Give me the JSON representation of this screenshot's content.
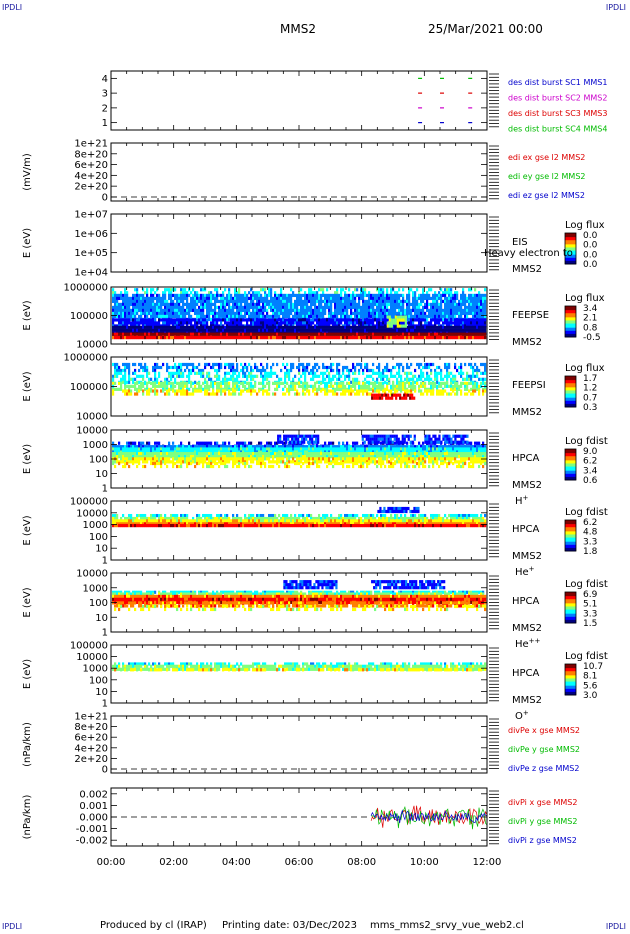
{
  "corner_label": "IPDLI",
  "header": {
    "spacecraft": "MMS2",
    "date": "25/Mar/2021 00:00"
  },
  "footer": {
    "produced_by": "Produced by cl (IRAP)",
    "printing_date": "Printing date: 03/Dec/2023",
    "filename": "mms_mms2_srvy_vue_web2.cl"
  },
  "chart_data": [
    {
      "type": "line",
      "id": "burst",
      "yticks": [
        "1",
        "2",
        "3",
        "4"
      ],
      "ylim": [
        0.5,
        4.5
      ],
      "legend": [
        {
          "label": "des dist burst SC1 MMS1",
          "color": "#0000cc"
        },
        {
          "label": "des dist burst SC2 MMS2",
          "color": "#cc00cc"
        },
        {
          "label": "des dist burst SC3 MMS3",
          "color": "#dd0000"
        },
        {
          "label": "des dist burst SC4 MMS4",
          "color": "#00bb00"
        }
      ],
      "series": [
        {
          "y": 4,
          "color": "#00bb00",
          "segments": [
            [
              9.8,
              10.0
            ],
            [
              10.5,
              10.7
            ],
            [
              11.4,
              11.6
            ]
          ]
        },
        {
          "y": 3,
          "color": "#dd0000",
          "segments": [
            [
              9.8,
              10.0
            ],
            [
              10.5,
              10.7
            ],
            [
              11.4,
              11.6
            ]
          ]
        },
        {
          "y": 2,
          "color": "#cc00cc",
          "segments": [
            [
              9.8,
              10.0
            ],
            [
              10.5,
              10.7
            ],
            [
              11.4,
              11.6
            ]
          ]
        },
        {
          "y": 1,
          "color": "#0000cc",
          "segments": [
            [
              9.8,
              10.0
            ],
            [
              10.5,
              10.7
            ],
            [
              11.4,
              11.6
            ]
          ]
        }
      ]
    },
    {
      "type": "line",
      "id": "edi",
      "ylabel": "(mV/m)",
      "yticks": [
        "0",
        "2e+20",
        "4e+20",
        "6e+20",
        "8e+20",
        "1e+21"
      ],
      "ylim": [
        0,
        1e+21
      ],
      "legend": [
        {
          "label": "edi ex gse l2 MMS2",
          "color": "#dd0000"
        },
        {
          "label": "edi ey gse l2 MMS2",
          "color": "#00bb00"
        },
        {
          "label": "edi ez gse l2 MMS2",
          "color": "#0000cc"
        }
      ]
    },
    {
      "type": "heatmap",
      "id": "eis",
      "ylabel": "E (eV)",
      "yticks": [
        "1e+04",
        "1e+05",
        "1e+06",
        "1e+07"
      ],
      "ylim": [
        10000.0,
        10000000.0
      ],
      "yscale": "log",
      "labels": [
        "EIS",
        "MMS2"
      ],
      "overlay": "Heavy electron to",
      "colorbar": {
        "title": "Log flux",
        "ticks": [
          "0.0",
          "0.0",
          "0.0",
          "0.0"
        ]
      }
    },
    {
      "type": "heatmap",
      "id": "feepse",
      "ylabel": "E (eV)",
      "yticks": [
        "10000",
        "100000",
        "1000000"
      ],
      "ylim": [
        10000.0,
        1000000.0
      ],
      "yscale": "log",
      "labels": [
        "FEEPSE",
        "MMS2"
      ],
      "colorbar": {
        "title": "Log flux",
        "ticks": [
          "3.4",
          "2.1",
          "0.8",
          "-0.5"
        ]
      }
    },
    {
      "type": "heatmap",
      "id": "feepsi",
      "ylabel": "E (eV)",
      "yticks": [
        "10000",
        "100000",
        "1000000"
      ],
      "ylim": [
        10000.0,
        1000000.0
      ],
      "yscale": "log",
      "labels": [
        "FEEPSI",
        "MMS2"
      ],
      "colorbar": {
        "title": "Log flux",
        "ticks": [
          "1.7",
          "1.2",
          "0.7",
          "0.3"
        ]
      }
    },
    {
      "type": "heatmap",
      "id": "hpca-h",
      "ylabel": "E (eV)",
      "yticks": [
        "1",
        "10",
        "100",
        "1000",
        "10000"
      ],
      "ylim": [
        1,
        10000.0
      ],
      "yscale": "log",
      "labels": [
        "HPCA",
        "MMS2"
      ],
      "species": "H",
      "species_sup": "+",
      "colorbar": {
        "title": "Log fdist",
        "ticks": [
          "9.0",
          "6.2",
          "3.4",
          "0.6"
        ]
      }
    },
    {
      "type": "heatmap",
      "id": "hpca-he",
      "ylabel": "E (eV)",
      "yticks": [
        "1",
        "10",
        "100",
        "1000",
        "10000",
        "100000"
      ],
      "ylim": [
        1,
        100000.0
      ],
      "yscale": "log",
      "labels": [
        "HPCA",
        "MMS2"
      ],
      "species": "He",
      "species_sup": "+",
      "colorbar": {
        "title": "Log fdist",
        "ticks": [
          "6.2",
          "4.8",
          "3.3",
          "1.8"
        ]
      }
    },
    {
      "type": "heatmap",
      "id": "hpca-hepp",
      "ylabel": "E (eV)",
      "yticks": [
        "1",
        "10",
        "100",
        "1000",
        "10000"
      ],
      "ylim": [
        1,
        10000.0
      ],
      "yscale": "log",
      "labels": [
        "HPCA",
        "MMS2"
      ],
      "species": "He",
      "species_sup": "++",
      "colorbar": {
        "title": "Log fdist",
        "ticks": [
          "6.9",
          "5.1",
          "3.3",
          "1.5"
        ]
      }
    },
    {
      "type": "heatmap",
      "id": "hpca-o",
      "ylabel": "E (eV)",
      "yticks": [
        "1",
        "10",
        "100",
        "1000",
        "10000",
        "100000"
      ],
      "ylim": [
        1,
        100000.0
      ],
      "yscale": "log",
      "labels": [
        "HPCA",
        "MMS2"
      ],
      "species": "O",
      "species_sup": "+",
      "colorbar": {
        "title": "Log fdist",
        "ticks": [
          "10.7",
          "8.1",
          "5.6",
          "3.0"
        ]
      }
    },
    {
      "type": "line",
      "id": "divpe",
      "ylabel": "(nPa/km)",
      "yticks": [
        "0",
        "2e+20",
        "4e+20",
        "6e+20",
        "8e+20",
        "1e+21"
      ],
      "ylim": [
        0,
        1e+21
      ],
      "legend": [
        {
          "label": "divPe x gse MMS2",
          "color": "#dd0000"
        },
        {
          "label": "divPe y gse MMS2",
          "color": "#00bb00"
        },
        {
          "label": "divPe z gse MMS2",
          "color": "#0000cc"
        }
      ]
    },
    {
      "type": "line",
      "id": "divpi",
      "ylabel": "(nPa/km)",
      "yticks": [
        "-0.002",
        "-0.001",
        "0.000",
        "0.001",
        "0.002"
      ],
      "ylim": [
        -0.0025,
        0.0025
      ],
      "legend": [
        {
          "label": "divPi x gse MMS2",
          "color": "#dd0000"
        },
        {
          "label": "divPi y gse MMS2",
          "color": "#00bb00"
        },
        {
          "label": "divPi z gse MMS2",
          "color": "#0000cc"
        }
      ],
      "data_start_hour": 8.3
    }
  ],
  "xaxis": {
    "ticks": [
      "00:00",
      "02:00",
      "04:00",
      "06:00",
      "08:00",
      "10:00",
      "12:00"
    ],
    "range_hours": [
      0,
      12
    ]
  }
}
